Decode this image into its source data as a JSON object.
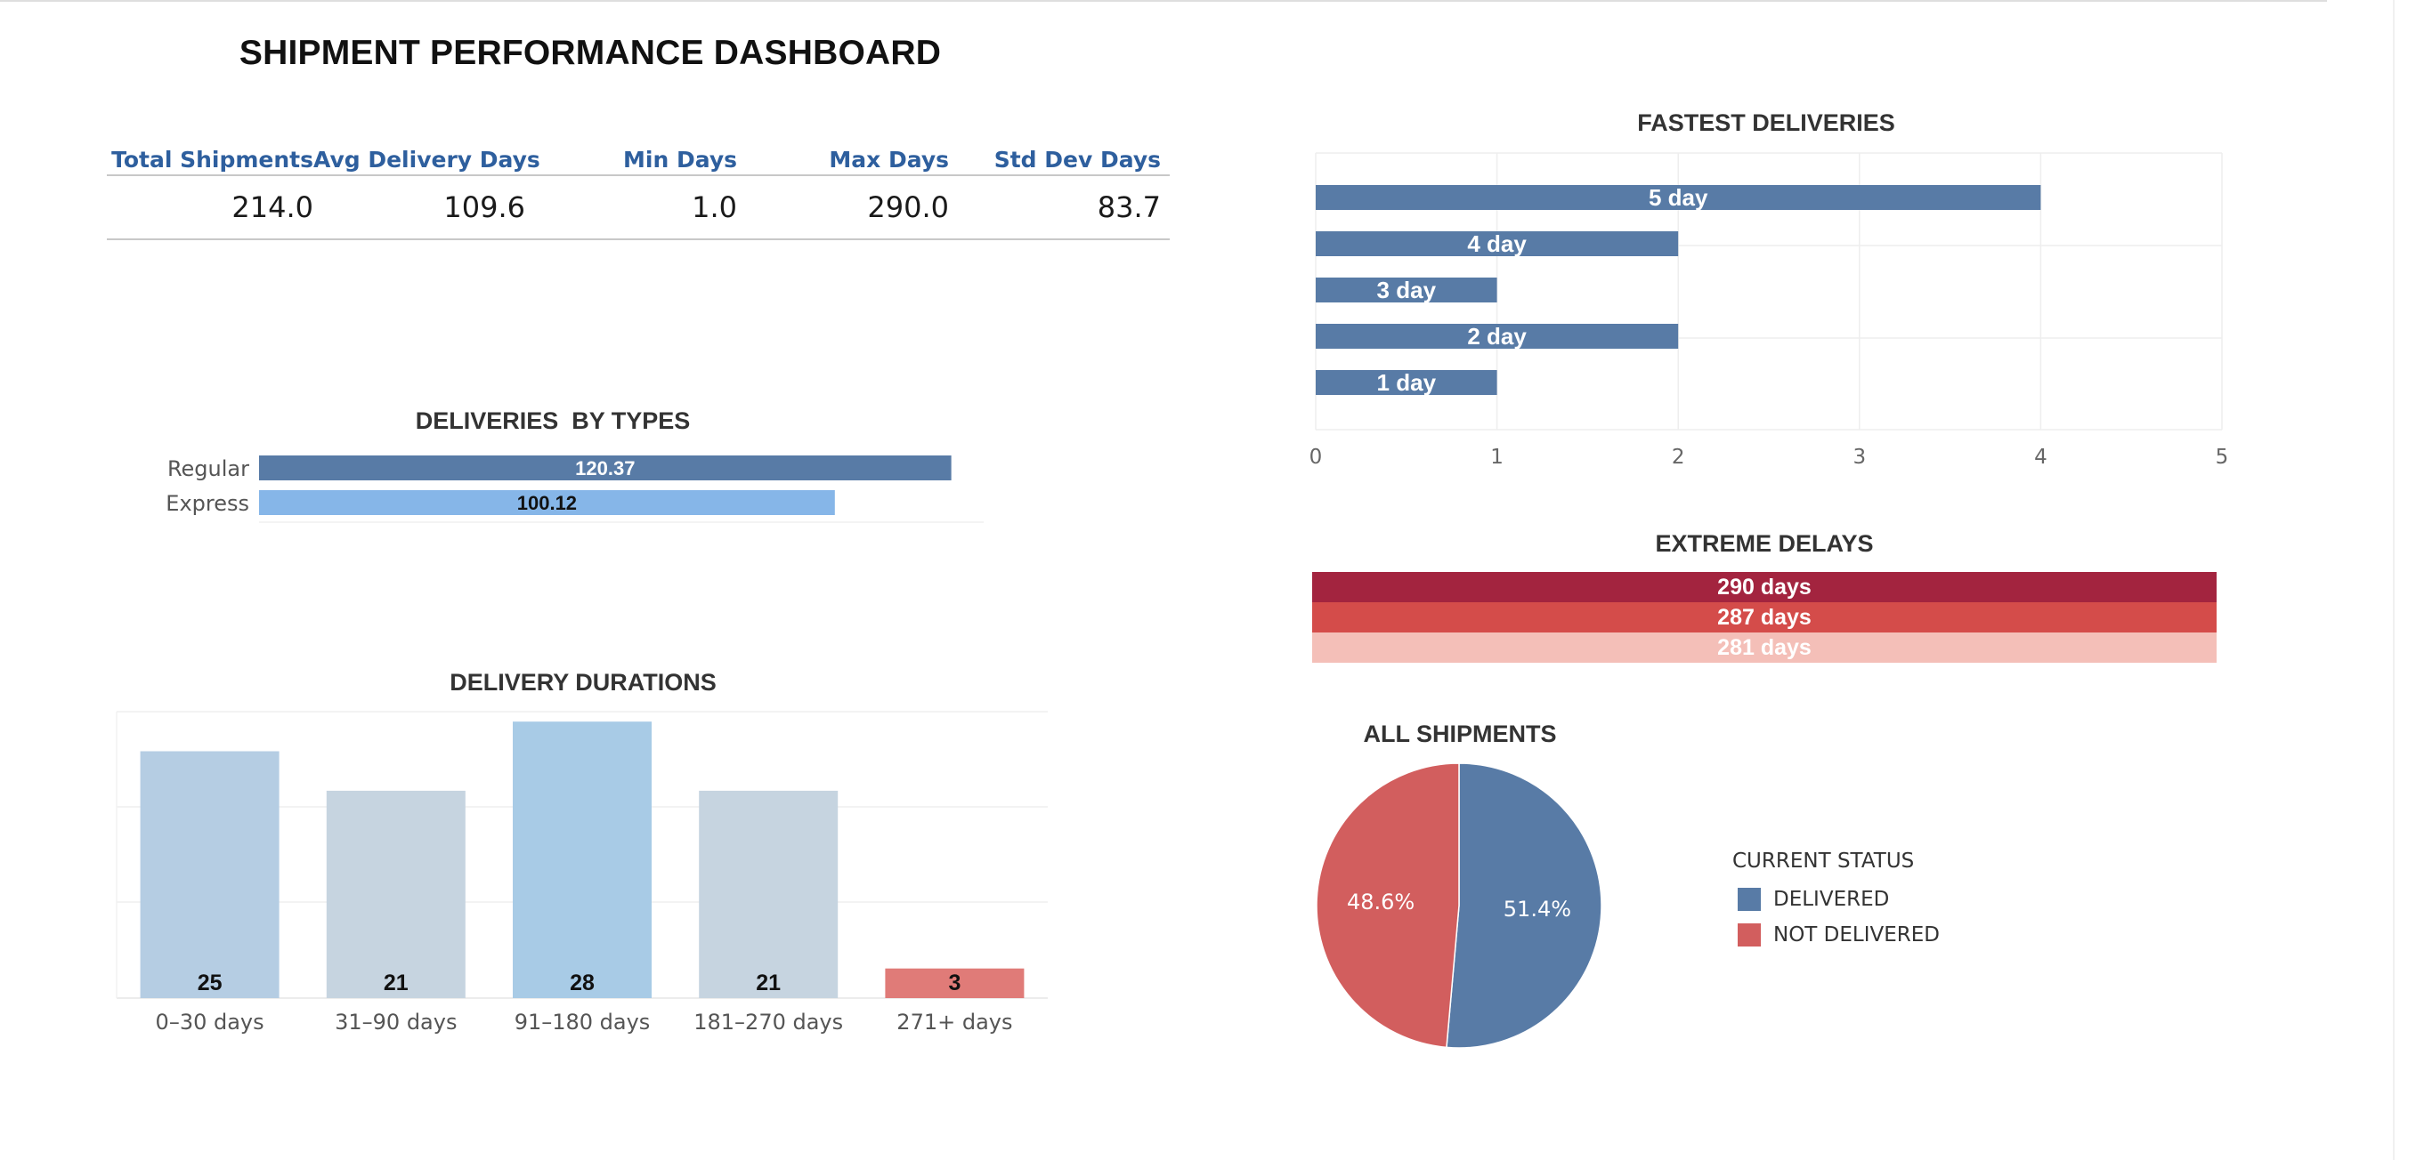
{
  "page": {
    "title": "SHIPMENT PERFORMANCE DASHBOARD"
  },
  "kpis": {
    "headers": [
      "Total Shipments",
      "Avg Delivery Days",
      "Min Days",
      "Max Days",
      "Std Dev Days"
    ],
    "values": [
      "214.0",
      "109.6",
      "1.0",
      "290.0",
      "83.7"
    ],
    "header_color": "#2e5f9e"
  },
  "chart_data": [
    {
      "id": "fastest-deliveries",
      "type": "bar",
      "orientation": "horizontal",
      "title": "FASTEST DELIVERIES",
      "categories": [
        "5 day",
        "4 day",
        "3 day",
        "2 day",
        "1 day"
      ],
      "values": [
        4,
        2,
        1,
        2,
        1
      ],
      "xlim": [
        0,
        5
      ],
      "x_ticks": [
        "0",
        "1",
        "2",
        "3",
        "4",
        "5"
      ],
      "grid": true,
      "color": "#587ba6"
    },
    {
      "id": "deliveries-by-types",
      "type": "bar",
      "orientation": "horizontal",
      "title": "DELIVERIES  BY TYPES",
      "categories": [
        "Regular",
        "Express"
      ],
      "values": [
        120.37,
        100.12
      ],
      "data_labels": [
        "120.37",
        "100.12"
      ],
      "xlim": [
        0,
        126
      ],
      "colors": [
        "#587ba6",
        "#86b6e8"
      ]
    },
    {
      "id": "extreme-delays",
      "type": "table",
      "title": "EXTREME DELAYS",
      "rows": [
        "290 days",
        "287 days",
        "281 days"
      ],
      "colors": [
        "#a3243f",
        "#d44c4a",
        "#f4bfb8"
      ]
    },
    {
      "id": "delivery-durations",
      "type": "bar",
      "title": "DELIVERY DURATIONS",
      "categories": [
        "0–30 days",
        "31–90 days",
        "91–180 days",
        "181–270 days",
        "271+ days"
      ],
      "values": [
        25,
        21,
        28,
        21,
        3
      ],
      "data_labels": [
        "25",
        "21",
        "28",
        "21",
        "3"
      ],
      "ylim": [
        0,
        30
      ],
      "grid": true,
      "colors": [
        "#b5cde3",
        "#c6d4e0",
        "#a8cbe6",
        "#c6d4e0",
        "#e07b78"
      ]
    },
    {
      "id": "all-shipments",
      "type": "pie",
      "title": "ALL SHIPMENTS",
      "labels": [
        "DELIVERED",
        "NOT DELIVERED"
      ],
      "values": [
        51.4,
        48.6
      ],
      "data_labels": [
        "51.4%",
        "48.6%"
      ],
      "colors": [
        "#587ba6",
        "#d25e5e"
      ],
      "legend_title": "CURRENT STATUS",
      "legend_placement": "right"
    }
  ]
}
